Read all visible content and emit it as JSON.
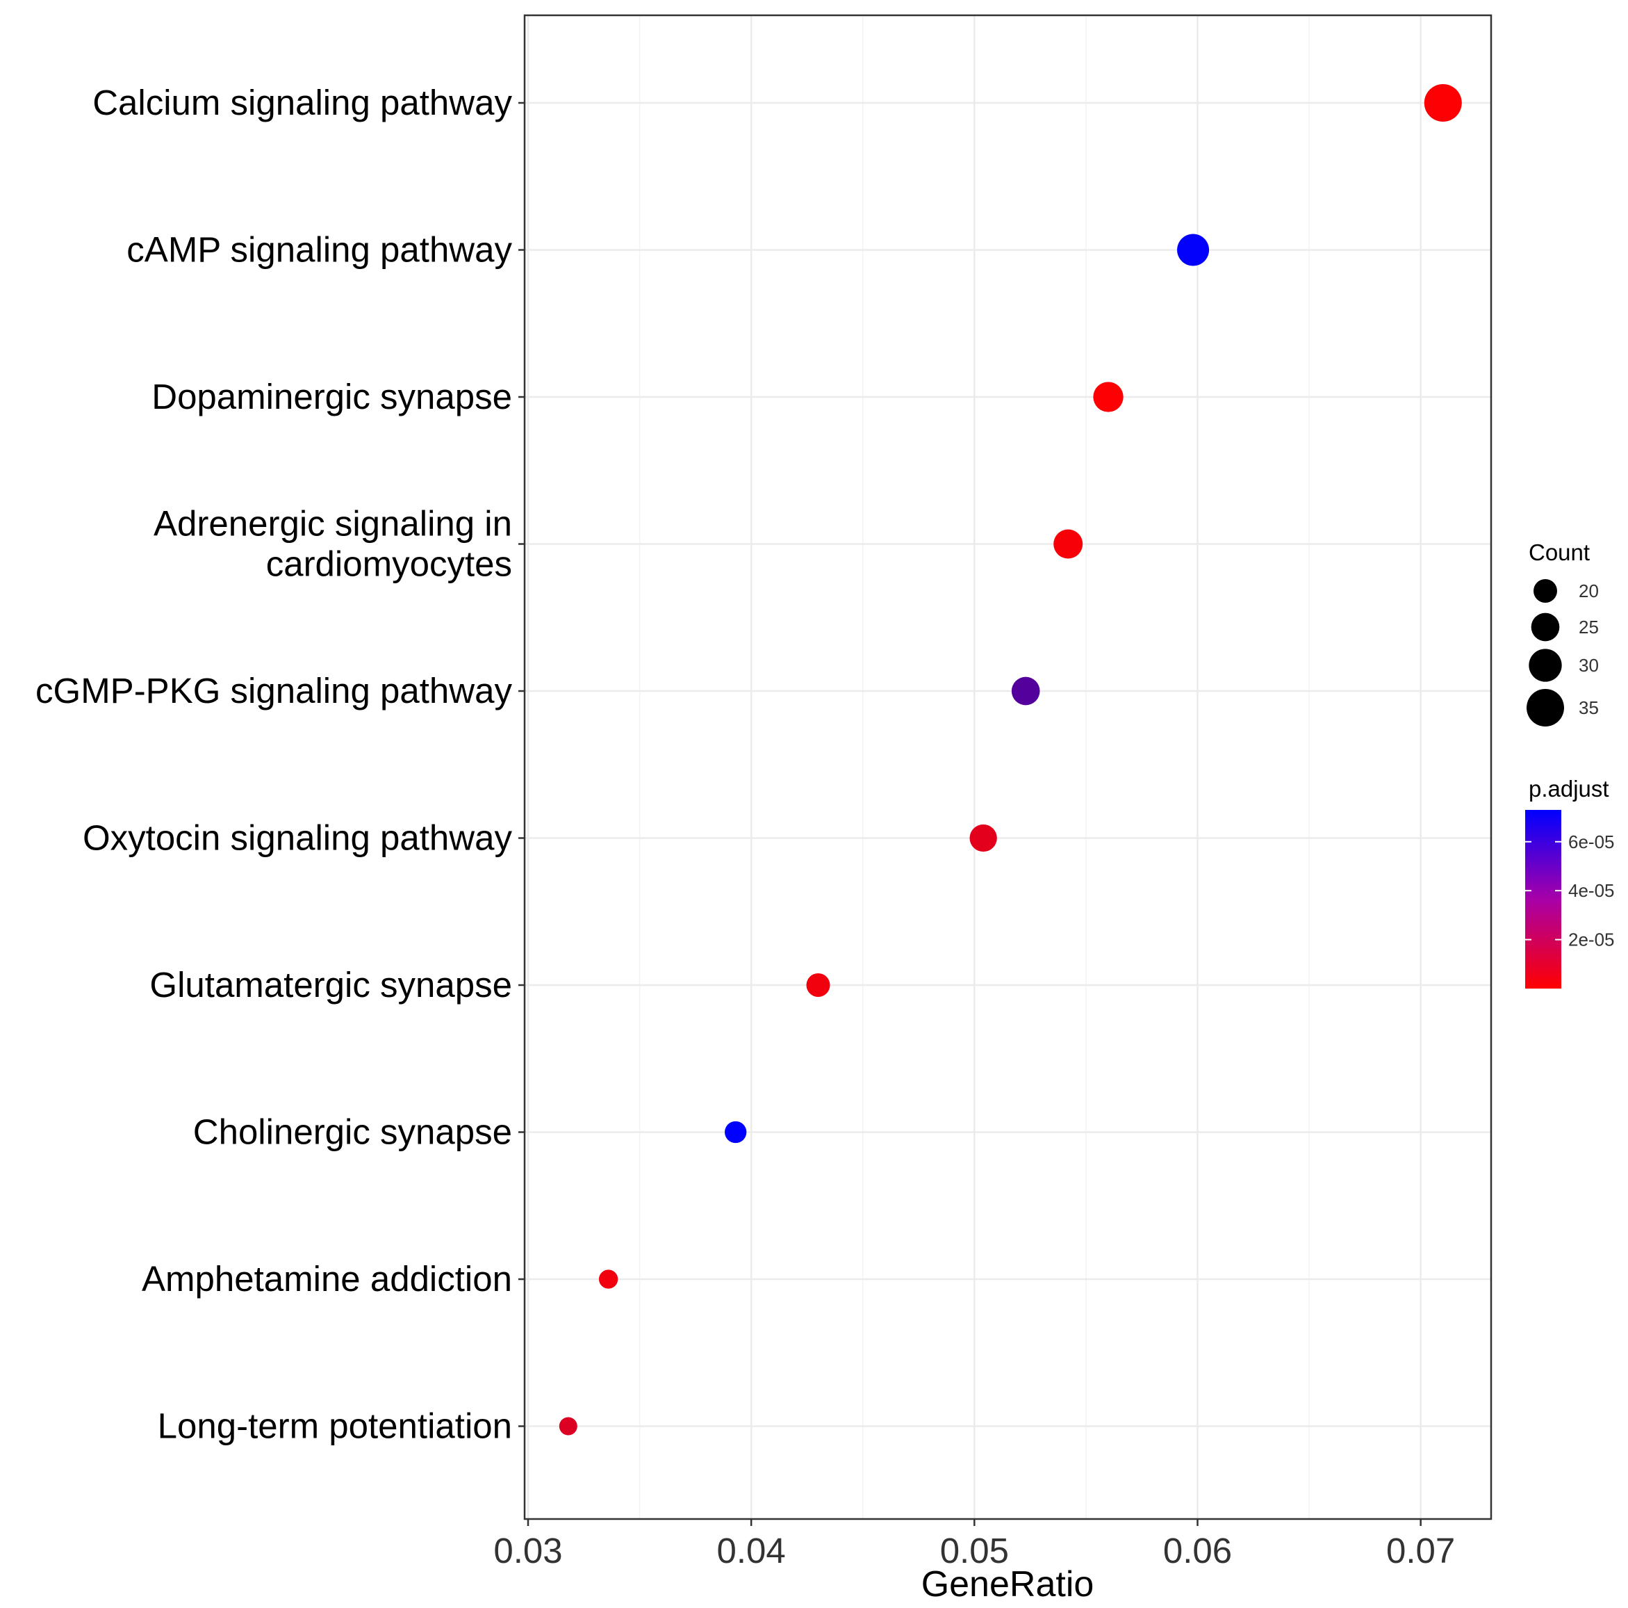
{
  "chart_data": {
    "type": "scatter",
    "title": "",
    "xlabel": "GeneRatio",
    "ylabel": "",
    "xlim": [
      0.03,
      0.073
    ],
    "xticks": [
      0.03,
      0.04,
      0.05,
      0.06,
      0.07
    ],
    "xtick_labels": [
      "0.03",
      "0.04",
      "0.05",
      "0.06",
      "0.07"
    ],
    "grid": true,
    "points": [
      {
        "label": [
          "Calcium signaling pathway"
        ],
        "x": 0.071,
        "count": 38,
        "p_adjust": 1e-06
      },
      {
        "label": [
          "cAMP signaling pathway"
        ],
        "x": 0.0598,
        "count": 32,
        "p_adjust": 7.2e-05
      },
      {
        "label": [
          "Dopaminergic synapse"
        ],
        "x": 0.056,
        "count": 30,
        "p_adjust": 1e-06
      },
      {
        "label": [
          "Adrenergic signaling in",
          "cardiomyocytes"
        ],
        "x": 0.0542,
        "count": 29,
        "p_adjust": 2e-06
      },
      {
        "label": [
          "cGMP-PKG signaling pathway"
        ],
        "x": 0.0523,
        "count": 28,
        "p_adjust": 4.5e-05
      },
      {
        "label": [
          "Oxytocin signaling pathway"
        ],
        "x": 0.0504,
        "count": 27,
        "p_adjust": 8e-06
      },
      {
        "label": [
          "Glutamatergic synapse"
        ],
        "x": 0.043,
        "count": 23,
        "p_adjust": 4e-06
      },
      {
        "label": [
          "Cholinergic synapse"
        ],
        "x": 0.0393,
        "count": 21,
        "p_adjust": 7.3e-05
      },
      {
        "label": [
          "Amphetamine addiction"
        ],
        "x": 0.0336,
        "count": 18,
        "p_adjust": 4e-06
      },
      {
        "label": [
          "Long-term potentiation"
        ],
        "x": 0.0318,
        "count": 17,
        "p_adjust": 1e-05
      }
    ],
    "size_legend": {
      "title": "Count",
      "values": [
        20,
        25,
        30,
        35
      ],
      "labels": [
        "20",
        "25",
        "30",
        "35"
      ]
    },
    "color_legend": {
      "title": "p.adjust",
      "low_color": "#ff0000",
      "high_color": "#0000ff",
      "range": [
        0,
        7.3e-05
      ],
      "ticks": [
        2e-05,
        4e-05,
        6e-05
      ],
      "tick_labels": [
        "2e-05",
        "4e-05",
        "6e-05"
      ]
    }
  }
}
